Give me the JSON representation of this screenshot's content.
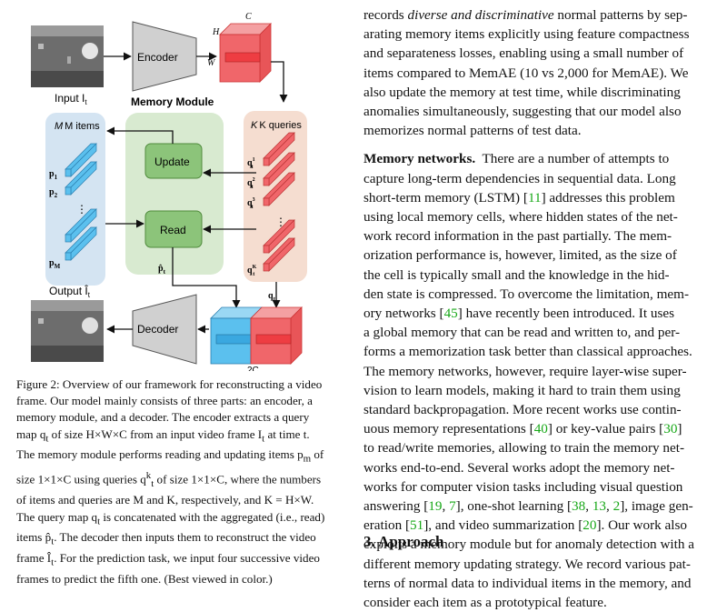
{
  "figure": {
    "encoder_label": "Encoder",
    "decoder_label": "Decoder",
    "input_label": "Input I",
    "input_sub": "t",
    "output_label": "Output Î",
    "output_sub": "t",
    "memory_module_title": "Memory Module",
    "m_items_label": "M items",
    "k_queries_label": "K queries",
    "update_label": "Update",
    "read_label": "Read",
    "dim_c": "C",
    "dim_h": "H",
    "dim_w": "W",
    "dim_2c": "2C",
    "qt_label": "q",
    "phat_label": "p̂",
    "t_sub": "t",
    "item_p1": "p",
    "item_p1_sub": "1",
    "item_p2": "p",
    "item_p2_sub": "2",
    "item_pm": "p",
    "item_pm_sub": "M",
    "query_sup1": "1",
    "query_sup2": "2",
    "query_sup3": "3",
    "query_supk": "K",
    "dots": "⋮"
  },
  "caption": {
    "lines": [
      "Figure 2: Overview of our framework for reconstructing a video",
      "frame.  Our model mainly consists of three parts:  an encoder, a",
      "memory module, and a decoder.  The encoder extracts a query",
      "map q<sub>t</sub> of size H×W×C from an input video frame I<sub>t</sub> at time t.",
      "The memory module performs reading and updating items p<sub>m</sub> of",
      "size 1×1×C using queries q<sup>k</sup><sub>t</sub> of size 1×1×C, where the numbers",
      "of items and queries are M and K, respectively, and K = H×W.",
      "The query map q<sub>t</sub> is concatenated with the aggregated (i.e., read)",
      "items p̂<sub>t</sub>.  The decoder then inputs them to reconstruct the video",
      "frame Î<sub>t</sub>.  For the prediction task, we input four successive video",
      "frames to predict the fifth one. (Best viewed in color.)"
    ]
  },
  "right_column": {
    "lines": [
      "records <i>diverse and discriminative</i> normal patterns by sep-",
      "arating memory items explicitly using feature compactness",
      "and separateness losses, enabling using a small number of",
      "items compared to MemAE (10 vs 2,000 for MemAE). We",
      "also update the memory at test time, while discriminating",
      "anomalies simultaneously, suggesting that our model also",
      "memorizes normal patterns of test data.",
      "",
      "<b>Memory networks.</b>&nbsp; There are a number of attempts to",
      "capture long-term dependencies in sequential data.  Long",
      "short-term memory (LSTM) [<span class='cite'>11</span>] addresses this problem",
      "using local memory cells, where hidden states of the net-",
      "work record information in the past partially.  The mem-",
      "orization performance is, however, limited, as the size of",
      "the cell is typically small and the knowledge in the hid-",
      "den state is compressed. To overcome the limitation, mem-",
      "ory networks [<span class='cite'>45</span>] have recently been introduced.  It uses",
      "a global memory that can be read and written to, and per-",
      "forms a memorization task better than classical approaches.",
      "The memory networks, however, require layer-wise super-",
      "vision to learn models, making it hard to train them using",
      "standard backpropagation.  More recent works use contin-",
      "uous memory representations [<span class='cite'>40</span>] or key-value pairs [<span class='cite'>30</span>]",
      "to read/write memories, allowing to train the memory net-",
      "works end-to-end.  Several works adopt the memory net-",
      "works for computer vision tasks including visual question",
      "answering [<span class='cite'>19</span>, <span class='cite'>7</span>], one-shot learning [<span class='cite'>38</span>, <span class='cite'>13</span>, <span class='cite'>2</span>], image gen-",
      "eration [<span class='cite'>51</span>], and video summarization [<span class='cite'>20</span>]. Our work also",
      "exploits a memory module but for anomaly detection with a",
      "different memory updating strategy. We record various pat-",
      "terns of normal data to individual items in the memory, and",
      "consider each item as a prototypical feature."
    ]
  },
  "section_title": "3. Approach",
  "colors": {
    "memory_bg": "#d8ead0",
    "items_bg": "#d4e4f2",
    "queries_bg": "#f5ddd0",
    "node_green": "#8cc47a",
    "node_green_border": "#4f8a3c",
    "red_block": "#f0666a",
    "blue_block": "#5bc0ee",
    "encoder_gray": "#d0d0d0",
    "cite_green": "#18a818"
  }
}
